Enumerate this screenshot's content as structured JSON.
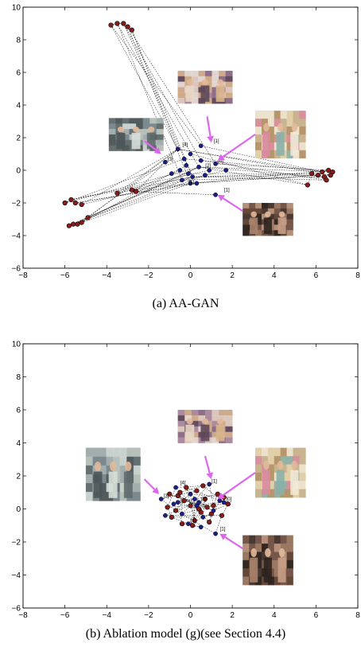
{
  "colors": {
    "red_points": "#8b1a1a",
    "blue_points": "#1a1f8a",
    "arrows": "#dd66ee"
  },
  "chart_data": [
    {
      "type": "scatter",
      "caption": "(a)  AA-GAN",
      "xlim": [
        -8,
        8
      ],
      "ylim": [
        -6,
        10
      ],
      "x_ticks": [
        "−8",
        "−6",
        "−4",
        "−2",
        "0",
        "2",
        "4",
        "6",
        "8"
      ],
      "y_ticks": [
        "−6",
        "−4",
        "−2",
        "0",
        "2",
        "4",
        "6",
        "8",
        "10"
      ],
      "grid": false,
      "point_labels": [
        {
          "x": -1.2,
          "y": 0.5,
          "text": "[3]"
        },
        {
          "x": -0.5,
          "y": 1.4,
          "text": "[4]"
        },
        {
          "x": 1.0,
          "y": 1.6,
          "text": "[1]"
        },
        {
          "x": 1.2,
          "y": 0.4,
          "text": "[0]"
        },
        {
          "x": 1.5,
          "y": -1.4,
          "text": "[1]"
        },
        {
          "x": 0.6,
          "y": 0.1,
          "text": "[2]"
        },
        {
          "x": -0.2,
          "y": -0.9,
          "text": "[1]"
        }
      ],
      "image_thumbnails": [
        {
          "name": "celebration-group",
          "cx": 0.7,
          "cy": 5.1,
          "w": 2.6,
          "h": 2.0
        },
        {
          "name": "two-men-handshake",
          "cx": -2.6,
          "cy": 2.2,
          "w": 2.6,
          "h": 2.0
        },
        {
          "name": "two-women-room",
          "cx": 4.3,
          "cy": 2.2,
          "w": 2.4,
          "h": 2.9
        },
        {
          "name": "screaming-group",
          "cx": 3.7,
          "cy": -3.0,
          "w": 2.4,
          "h": 2.0
        }
      ],
      "arrows": [
        {
          "from": [
            0.8,
            3.3
          ],
          "to": [
            1.0,
            1.7
          ]
        },
        {
          "from": [
            -2.2,
            1.8
          ],
          "to": [
            -1.4,
            1.0
          ]
        },
        {
          "from": [
            3.1,
            2.2
          ],
          "to": [
            1.3,
            0.6
          ]
        },
        {
          "from": [
            2.5,
            -2.5
          ],
          "to": [
            1.3,
            -1.5
          ]
        }
      ],
      "series": [
        {
          "color": "red",
          "points": [
            [
              -3.8,
              8.9
            ],
            [
              -3.5,
              9.0
            ],
            [
              -3.2,
              9.0
            ],
            [
              -3.0,
              8.8
            ],
            [
              -2.8,
              8.6
            ],
            [
              -6.0,
              -2.0
            ],
            [
              -5.7,
              -1.8
            ],
            [
              -5.5,
              -2.0
            ],
            [
              -5.2,
              -2.1
            ],
            [
              -5.8,
              -3.4
            ],
            [
              -5.6,
              -3.3
            ],
            [
              -5.4,
              -3.3
            ],
            [
              -5.2,
              -3.2
            ],
            [
              -4.9,
              -2.9
            ],
            [
              -3.5,
              -1.4
            ],
            [
              -2.8,
              -1.2
            ],
            [
              -2.6,
              -1.3
            ],
            [
              5.6,
              -0.9
            ],
            [
              5.8,
              -0.2
            ],
            [
              6.1,
              -0.3
            ],
            [
              6.3,
              -0.1
            ],
            [
              6.4,
              -0.4
            ],
            [
              6.5,
              -0.6
            ],
            [
              6.6,
              0.0
            ],
            [
              6.7,
              -0.3
            ],
            [
              6.8,
              -0.1
            ]
          ]
        },
        {
          "color": "blue",
          "points": [
            [
              -1.2,
              0.5
            ],
            [
              -0.6,
              1.3
            ],
            [
              0.0,
              1.0
            ],
            [
              0.5,
              1.5
            ],
            [
              1.2,
              0.4
            ],
            [
              0.9,
              0.0
            ],
            [
              0.4,
              0.2
            ],
            [
              -0.2,
              0.3
            ],
            [
              -0.5,
              0.0
            ],
            [
              -0.9,
              -0.2
            ],
            [
              -0.4,
              -0.6
            ],
            [
              0.1,
              -0.4
            ],
            [
              0.3,
              -0.8
            ],
            [
              0.7,
              -0.3
            ],
            [
              -0.1,
              -0.2
            ],
            [
              1.2,
              -1.5
            ],
            [
              0.0,
              -0.8
            ],
            [
              0.5,
              0.6
            ],
            [
              -0.3,
              0.7
            ],
            [
              1.7,
              0.0
            ]
          ]
        }
      ]
    },
    {
      "type": "scatter",
      "caption": "(b)  Ablation model (g)(see Section 4.4)",
      "xlim": [
        -8,
        8
      ],
      "ylim": [
        -6,
        10
      ],
      "x_ticks": [
        "−8",
        "−6",
        "−4",
        "−2",
        "0",
        "2",
        "4",
        "6",
        "8"
      ],
      "y_ticks": [
        "−6",
        "−4",
        "−2",
        "0",
        "2",
        "4",
        "6",
        "8",
        "10"
      ],
      "grid": false,
      "point_labels": [
        {
          "x": -1.4,
          "y": 0.6,
          "text": "[3]"
        },
        {
          "x": -0.6,
          "y": 1.4,
          "text": "[4]"
        },
        {
          "x": 0.9,
          "y": 1.5,
          "text": "[1]"
        },
        {
          "x": 1.6,
          "y": 0.4,
          "text": "[0]"
        },
        {
          "x": 1.3,
          "y": -1.4,
          "text": "[1]"
        },
        {
          "x": 0.4,
          "y": 0.4,
          "text": "[0]"
        },
        {
          "x": -0.1,
          "y": -0.9,
          "text": "[1]"
        }
      ],
      "image_thumbnails": [
        {
          "name": "celebration-group",
          "cx": 0.7,
          "cy": 5.0,
          "w": 2.6,
          "h": 2.0
        },
        {
          "name": "two-men-handshake",
          "cx": -3.7,
          "cy": 2.1,
          "w": 2.6,
          "h": 3.2
        },
        {
          "name": "two-women-room",
          "cx": 4.3,
          "cy": 2.2,
          "w": 2.4,
          "h": 3.0
        },
        {
          "name": "screaming-group",
          "cx": 3.7,
          "cy": -3.1,
          "w": 2.4,
          "h": 3.0
        }
      ],
      "arrows": [
        {
          "from": [
            0.7,
            3.2
          ],
          "to": [
            1.0,
            1.8
          ]
        },
        {
          "from": [
            -2.2,
            1.8
          ],
          "to": [
            -1.5,
            0.9
          ]
        },
        {
          "from": [
            3.1,
            2.2
          ],
          "to": [
            1.3,
            0.6
          ]
        },
        {
          "from": [
            2.5,
            -2.4
          ],
          "to": [
            1.4,
            -1.5
          ]
        }
      ],
      "series": [
        {
          "color": "red",
          "points": [
            [
              -1.1,
              0.1
            ],
            [
              -0.9,
              -0.5
            ],
            [
              -0.6,
              0.8
            ],
            [
              -0.4,
              -0.9
            ],
            [
              -0.2,
              1.3
            ],
            [
              0.0,
              0.2
            ],
            [
              0.2,
              -0.7
            ],
            [
              0.3,
              1.1
            ],
            [
              0.5,
              -0.2
            ],
            [
              0.7,
              0.6
            ],
            [
              0.9,
              -0.8
            ],
            [
              1.1,
              0.2
            ],
            [
              1.3,
              0.9
            ],
            [
              1.5,
              -0.4
            ],
            [
              1.8,
              0.3
            ],
            [
              -0.7,
              -0.1
            ],
            [
              -0.3,
              0.5
            ],
            [
              0.1,
              -1.0
            ],
            [
              0.6,
              1.4
            ],
            [
              1.0,
              -0.3
            ],
            [
              -1.0,
              0.9
            ],
            [
              0.4,
              0.0
            ],
            [
              1.6,
              0.7
            ],
            [
              -0.5,
              1.0
            ],
            [
              0.8,
              0.1
            ]
          ]
        },
        {
          "color": "blue",
          "points": [
            [
              -1.4,
              0.6
            ],
            [
              -0.7,
              1.3
            ],
            [
              0.9,
              1.5
            ],
            [
              1.6,
              0.4
            ],
            [
              1.2,
              -1.5
            ],
            [
              0.4,
              0.4
            ],
            [
              -0.1,
              -0.9
            ],
            [
              -0.8,
              0.3
            ],
            [
              -0.4,
              -0.3
            ],
            [
              0.2,
              0.6
            ],
            [
              0.6,
              -0.5
            ],
            [
              1.1,
              -0.1
            ],
            [
              -1.2,
              -0.4
            ],
            [
              0.0,
              0.9
            ],
            [
              0.5,
              -1.1
            ],
            [
              1.4,
              0.5
            ],
            [
              -0.6,
              0.4
            ],
            [
              0.3,
              0.2
            ]
          ]
        }
      ]
    }
  ]
}
